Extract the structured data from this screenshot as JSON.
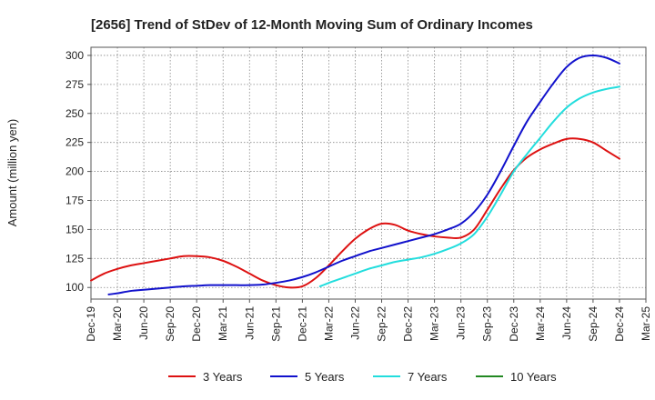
{
  "chart_data": {
    "type": "line",
    "title": "[2656]  Trend of StDev of 12-Month Moving Sum of Ordinary Incomes",
    "xlabel": "",
    "ylabel": "Amount (million yen)",
    "ylim": [
      90,
      307
    ],
    "yticks": [
      100,
      125,
      150,
      175,
      200,
      225,
      250,
      275,
      300
    ],
    "grid": true,
    "legend_position": "bottom",
    "categories": [
      "Dec-19",
      "Mar-20",
      "Jun-20",
      "Sep-20",
      "Dec-20",
      "Mar-21",
      "Jun-21",
      "Sep-21",
      "Dec-21",
      "Mar-22",
      "Jun-22",
      "Sep-22",
      "Dec-22",
      "Mar-23",
      "Jun-23",
      "Sep-23",
      "Dec-23",
      "Mar-24",
      "Jun-24",
      "Sep-24",
      "Dec-24",
      "Mar-25"
    ],
    "series": [
      {
        "name": "3 Years",
        "color": "#dd1111",
        "points": [
          [
            0,
            106
          ],
          [
            0.5,
            112
          ],
          [
            1,
            116
          ],
          [
            1.5,
            119
          ],
          [
            2,
            121
          ],
          [
            2.5,
            123
          ],
          [
            3,
            125
          ],
          [
            3.5,
            127
          ],
          [
            4,
            127
          ],
          [
            4.5,
            126
          ],
          [
            5,
            123
          ],
          [
            5.5,
            118
          ],
          [
            6,
            112
          ],
          [
            6.5,
            106
          ],
          [
            7,
            102
          ],
          [
            7.5,
            100
          ],
          [
            8,
            101
          ],
          [
            8.5,
            108
          ],
          [
            9,
            119
          ],
          [
            9.5,
            131
          ],
          [
            10,
            142
          ],
          [
            10.5,
            150
          ],
          [
            11,
            155
          ],
          [
            11.5,
            154
          ],
          [
            12,
            149
          ],
          [
            12.5,
            146
          ],
          [
            13,
            144
          ],
          [
            13.5,
            143
          ],
          [
            14,
            143
          ],
          [
            14.5,
            150
          ],
          [
            15,
            167
          ],
          [
            15.5,
            185
          ],
          [
            16,
            201
          ],
          [
            16.5,
            212
          ],
          [
            17,
            219
          ],
          [
            17.5,
            224
          ],
          [
            18,
            228
          ],
          [
            18.5,
            228
          ],
          [
            19,
            225
          ],
          [
            19.5,
            218
          ],
          [
            20,
            211
          ]
        ]
      },
      {
        "name": "5 Years",
        "color": "#1111cc",
        "points": [
          [
            0.67,
            94
          ],
          [
            1,
            95
          ],
          [
            1.5,
            97
          ],
          [
            2,
            98
          ],
          [
            2.5,
            99
          ],
          [
            3,
            100
          ],
          [
            3.5,
            101
          ],
          [
            4,
            101.5
          ],
          [
            4.5,
            102
          ],
          [
            5,
            102
          ],
          [
            5.5,
            102
          ],
          [
            6,
            102
          ],
          [
            6.5,
            102.5
          ],
          [
            7,
            104
          ],
          [
            7.5,
            106
          ],
          [
            8,
            109
          ],
          [
            8.5,
            113
          ],
          [
            9,
            118
          ],
          [
            9.5,
            123
          ],
          [
            10,
            127
          ],
          [
            10.5,
            131
          ],
          [
            11,
            134
          ],
          [
            11.5,
            137
          ],
          [
            12,
            140
          ],
          [
            12.5,
            143
          ],
          [
            13,
            146
          ],
          [
            13.5,
            150
          ],
          [
            14,
            155
          ],
          [
            14.5,
            165
          ],
          [
            15,
            180
          ],
          [
            15.5,
            200
          ],
          [
            16,
            222
          ],
          [
            16.5,
            243
          ],
          [
            17,
            260
          ],
          [
            17.5,
            276
          ],
          [
            18,
            290
          ],
          [
            18.5,
            298
          ],
          [
            19,
            300
          ],
          [
            19.5,
            298
          ],
          [
            20,
            293
          ]
        ]
      },
      {
        "name": "7 Years",
        "color": "#22dddd",
        "points": [
          [
            8.67,
            101
          ],
          [
            9,
            104
          ],
          [
            9.5,
            108
          ],
          [
            10,
            112
          ],
          [
            10.5,
            116
          ],
          [
            11,
            119
          ],
          [
            11.5,
            122
          ],
          [
            12,
            124
          ],
          [
            12.5,
            126
          ],
          [
            13,
            129
          ],
          [
            13.5,
            133
          ],
          [
            14,
            138
          ],
          [
            14.5,
            146
          ],
          [
            15,
            161
          ],
          [
            15.5,
            180
          ],
          [
            16,
            200
          ],
          [
            16.5,
            215
          ],
          [
            17,
            229
          ],
          [
            17.5,
            243
          ],
          [
            18,
            255
          ],
          [
            18.5,
            263
          ],
          [
            19,
            268
          ],
          [
            19.5,
            271
          ],
          [
            20,
            273
          ]
        ]
      },
      {
        "name": "10 Years",
        "color": "#228822",
        "points": []
      }
    ]
  }
}
